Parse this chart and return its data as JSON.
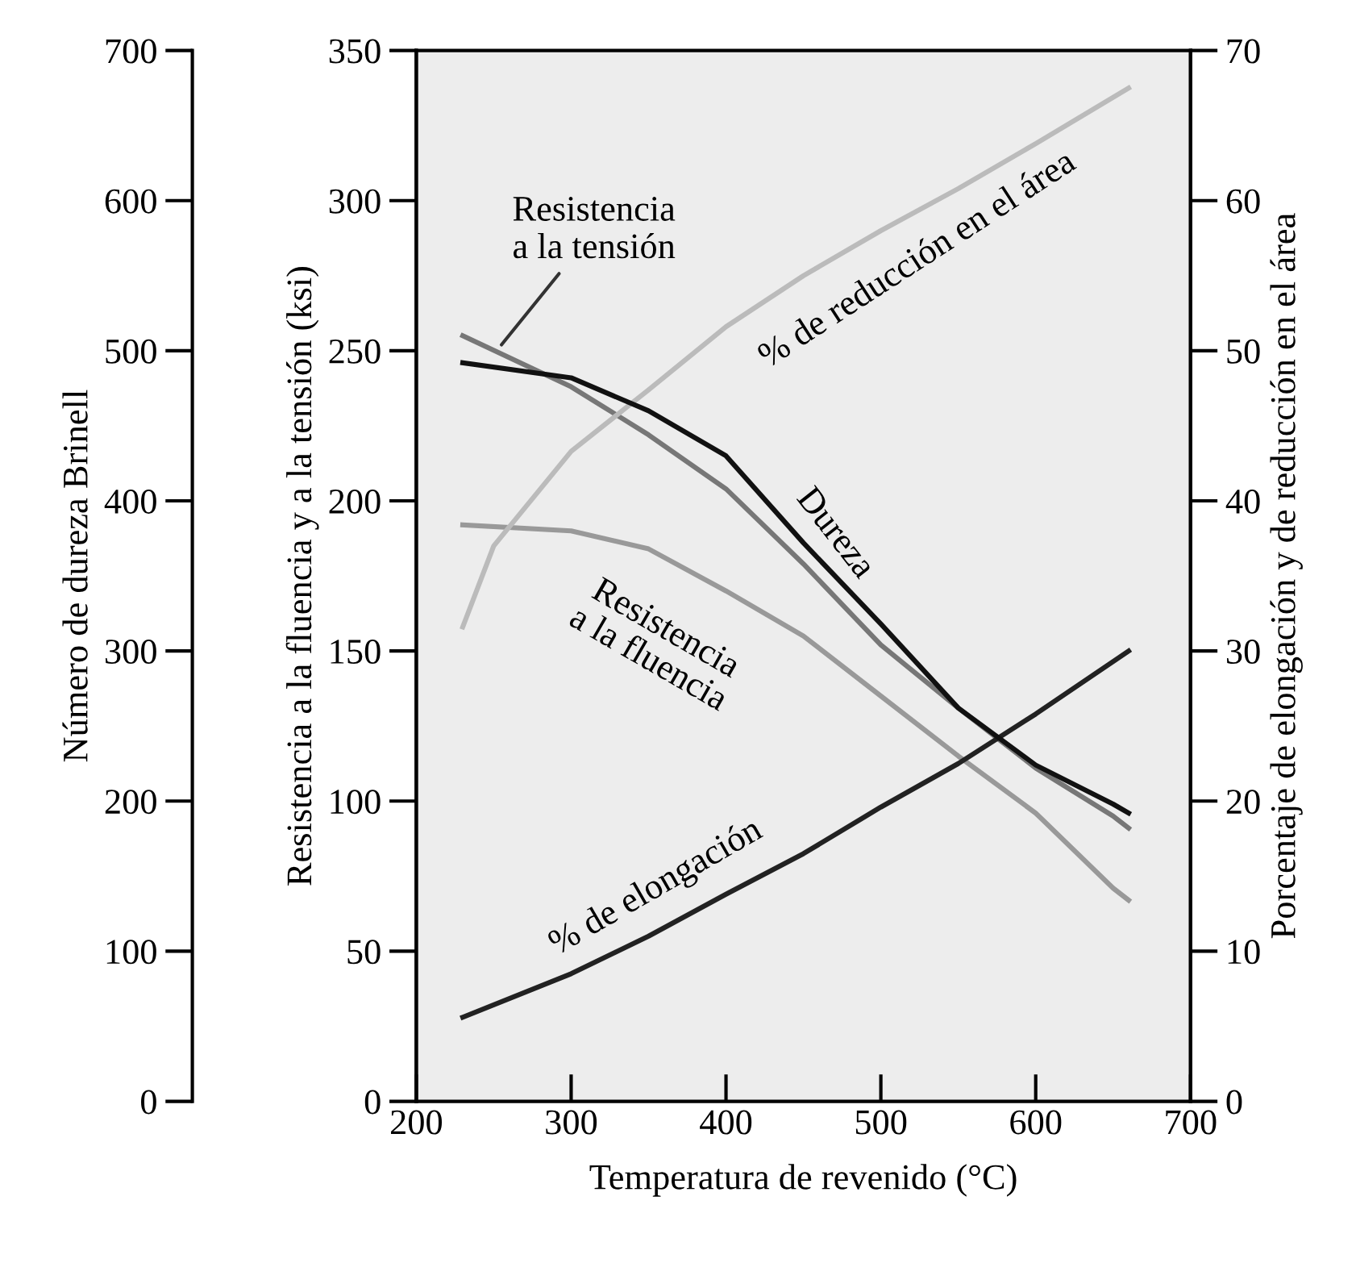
{
  "chart_data": {
    "type": "line",
    "xlabel": "Temperatura de revenido (°C)",
    "ylabel": "Resistencia a la fluencia y a la tensión (ksi)",
    "y2label": "Porcentaje de elongación y de reducción en el área",
    "y3label": "Número de dureza Brinell",
    "xlim": [
      200,
      700
    ],
    "xticks": [
      200,
      300,
      400,
      500,
      600,
      700
    ],
    "ylim": [
      0,
      350
    ],
    "yticks": [
      0,
      50,
      100,
      150,
      200,
      250,
      300,
      350
    ],
    "y2lim": [
      0,
      70
    ],
    "y2ticks": [
      0,
      10,
      20,
      30,
      40,
      50,
      60,
      70
    ],
    "y3lim": [
      0,
      700
    ],
    "y3ticks": [
      0,
      100,
      200,
      300,
      400,
      500,
      600,
      700
    ],
    "marker": "none",
    "line_style": "solid",
    "legend": false,
    "series": [
      {
        "color": "#777777",
        "axis": "y",
        "x": [
          230,
          300,
          350,
          400,
          450,
          500,
          550,
          600,
          650,
          660
        ],
        "values": [
          255,
          238,
          222,
          204,
          179,
          152,
          131,
          111,
          95,
          91
        ]
      },
      {
        "color": "#999999",
        "axis": "y",
        "x": [
          230,
          300,
          350,
          400,
          450,
          500,
          550,
          600,
          650,
          660
        ],
        "values": [
          192,
          190,
          184,
          170,
          155,
          135,
          115,
          96,
          71,
          67
        ]
      },
      {
        "color": "#111111",
        "axis": "y3",
        "x": [
          230,
          300,
          350,
          400,
          450,
          500,
          550,
          600,
          650,
          660
        ],
        "values": [
          492,
          482,
          460,
          430,
          372,
          318,
          262,
          224,
          198,
          192
        ]
      },
      {
        "color": "#bbbbbb",
        "axis": "y2",
        "x": [
          230,
          250,
          300,
          350,
          400,
          450,
          500,
          550,
          600,
          660
        ],
        "values": [
          31.6,
          37,
          43.3,
          47.4,
          51.6,
          55,
          58,
          60.8,
          63.8,
          67.5
        ]
      },
      {
        "color": "#222222",
        "axis": "y2",
        "x": [
          230,
          300,
          350,
          400,
          450,
          500,
          550,
          600,
          660
        ],
        "values": [
          5.6,
          8.5,
          11,
          13.8,
          16.5,
          19.6,
          22.5,
          25.8,
          30
        ]
      }
    ],
    "annotations": [
      {
        "text": "Resistencia\na la tensión",
        "x": 255,
        "y": 252
      },
      "% de reducción en el área",
      "Dureza",
      "Resistencia\na la fluencia",
      "% de elongación"
    ]
  }
}
